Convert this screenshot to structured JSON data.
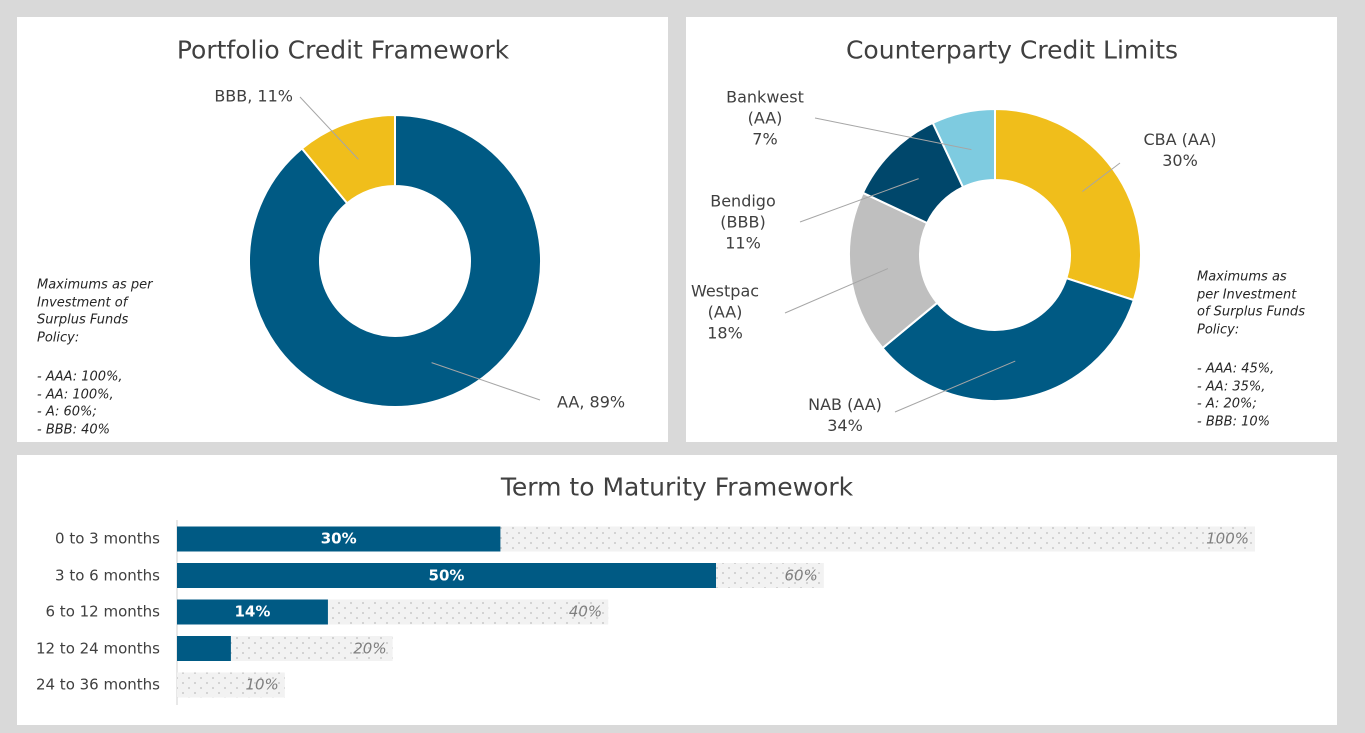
{
  "chart_data": [
    {
      "type": "donut",
      "title": "Portfolio Credit Framework",
      "values": [
        89,
        11
      ],
      "value_labels": [
        "AA, 89%",
        "BBB, 11%"
      ],
      "colors": [
        "#005a84",
        "#f0be1b"
      ],
      "note": [
        "Maximums as per",
        "Investment of",
        "Surplus Funds",
        "Policy:",
        "- AAA: 100%,",
        "- AA:   100%,",
        "- A:      60%;",
        "- BBB:  40%"
      ]
    },
    {
      "type": "donut",
      "title": "Counterparty Credit Limits",
      "categories": [
        "CBA (AA)",
        "NAB (AA)",
        "Westpac (AA)",
        "Bendigo (BBB)",
        "Bankwest (AA)"
      ],
      "values": [
        30,
        34,
        18,
        11,
        7
      ],
      "value_labels": [
        "30%",
        "34%",
        "18%",
        "11%",
        "7%"
      ],
      "colors": [
        "#f0be1b",
        "#005a84",
        "#bfbfbf",
        "#00476b",
        "#7ecbe0"
      ],
      "note": [
        "Maximums as",
        "per Investment",
        "of Surplus Funds",
        "Policy:",
        "- AAA: 45%,",
        "- AA:   35%,",
        "- A:      20%;",
        "- BBB: 10%"
      ]
    },
    {
      "type": "bar",
      "orientation": "horizontal",
      "barmode": "overlay",
      "title": "Term to Maturity Framework",
      "categories": [
        "0 to 3 months",
        "3 to 6 months",
        "6 to 12 months",
        "12 to 24 months",
        "24 to 36 months"
      ],
      "xlim": [
        0,
        100
      ],
      "series": [
        {
          "color": "#f2f2f2",
          "pattern": "dotted",
          "values": [
            100,
            60,
            40,
            20,
            10
          ],
          "value_labels": [
            "100%",
            "60%",
            "40%",
            "20%",
            "10%"
          ]
        },
        {
          "color": "#005a84",
          "values": [
            30,
            50,
            14,
            5,
            0
          ],
          "value_labels": [
            "30%",
            "50%",
            "14%",
            null,
            null
          ]
        }
      ]
    }
  ]
}
